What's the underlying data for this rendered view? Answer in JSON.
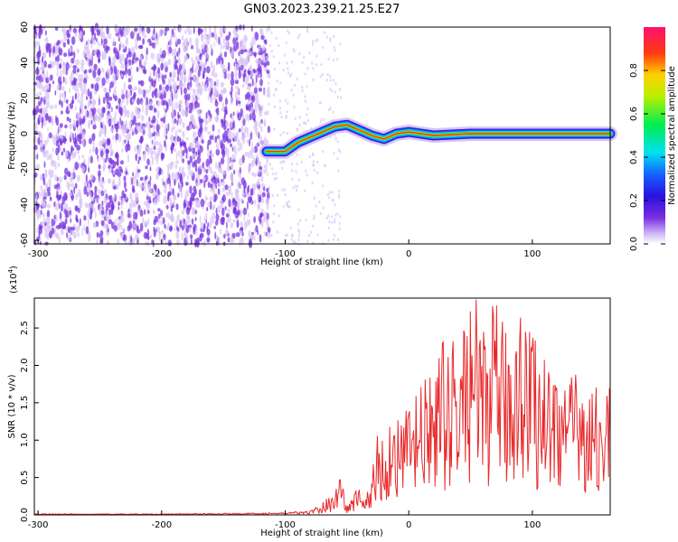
{
  "title": "GN03.2023.239.21.25.E27",
  "colors": {
    "snr_line": "#e8292b",
    "scatter": "#7a35e0",
    "scatter_light": "#d9c4f5"
  },
  "chart_data": [
    {
      "type": "heatmap",
      "xlabel": "Height of straight line (km)",
      "ylabel": "Frequency (Hz)",
      "xlim": [
        -303,
        163
      ],
      "ylim": [
        -62,
        60
      ],
      "xticks": [
        -300,
        -200,
        -100,
        0,
        100
      ],
      "yticks": [
        60,
        40,
        20,
        0,
        -20,
        -40,
        -60
      ],
      "colorbar": {
        "label": "Normalized spectral amplitude",
        "range": [
          0.0,
          1.0
        ],
        "ticks": [
          "0.0",
          "0.2",
          "0.4",
          "0.6",
          "0.8"
        ]
      },
      "ridge": {
        "description_points_x": [
          -115,
          -100,
          -90,
          -80,
          -70,
          -60,
          -50,
          -40,
          -30,
          -20,
          -10,
          0,
          20,
          50,
          100,
          163
        ],
        "description_points_y": [
          -10,
          -10,
          -5,
          -2,
          1,
          4,
          5,
          2,
          -1,
          -3,
          0,
          1,
          -1,
          0,
          0,
          0
        ]
      }
    },
    {
      "type": "line",
      "xlabel": "Height of straight line (km)",
      "ylabel": "SNR (10 * v/v)",
      "multiplier": "(x10",
      "multiplier_exp": "4",
      "multiplier_close": ")",
      "xlim": [
        -303,
        163
      ],
      "ylim": [
        0.0,
        2.9
      ],
      "xticks": [
        -300,
        -200,
        -100,
        0,
        100
      ],
      "yticks": [
        "0.0",
        "0.5",
        "1.0",
        "1.5",
        "2.0",
        "2.5"
      ],
      "series": [
        {
          "x": [
            -303,
            -200,
            -100,
            -80,
            -70,
            -60,
            -55,
            -50,
            -45,
            -40,
            -35,
            -30,
            -25,
            -20,
            -15,
            -10,
            -5,
            0,
            10,
            20,
            30,
            40,
            50,
            60,
            70,
            80,
            90,
            100,
            110,
            120,
            130,
            140,
            150,
            160,
            163
          ],
          "values": [
            0.01,
            0.01,
            0.02,
            0.05,
            0.15,
            0.3,
            0.55,
            0.1,
            0.25,
            0.4,
            0.2,
            0.5,
            1.1,
            0.9,
            1.2,
            1.3,
            1.1,
            1.4,
            1.6,
            1.8,
            2.2,
            2.1,
            2.8,
            2.4,
            2.6,
            2.2,
            2.8,
            2.3,
            2.0,
            1.9,
            1.7,
            1.8,
            1.6,
            1.5,
            1.8
          ]
        }
      ]
    }
  ]
}
